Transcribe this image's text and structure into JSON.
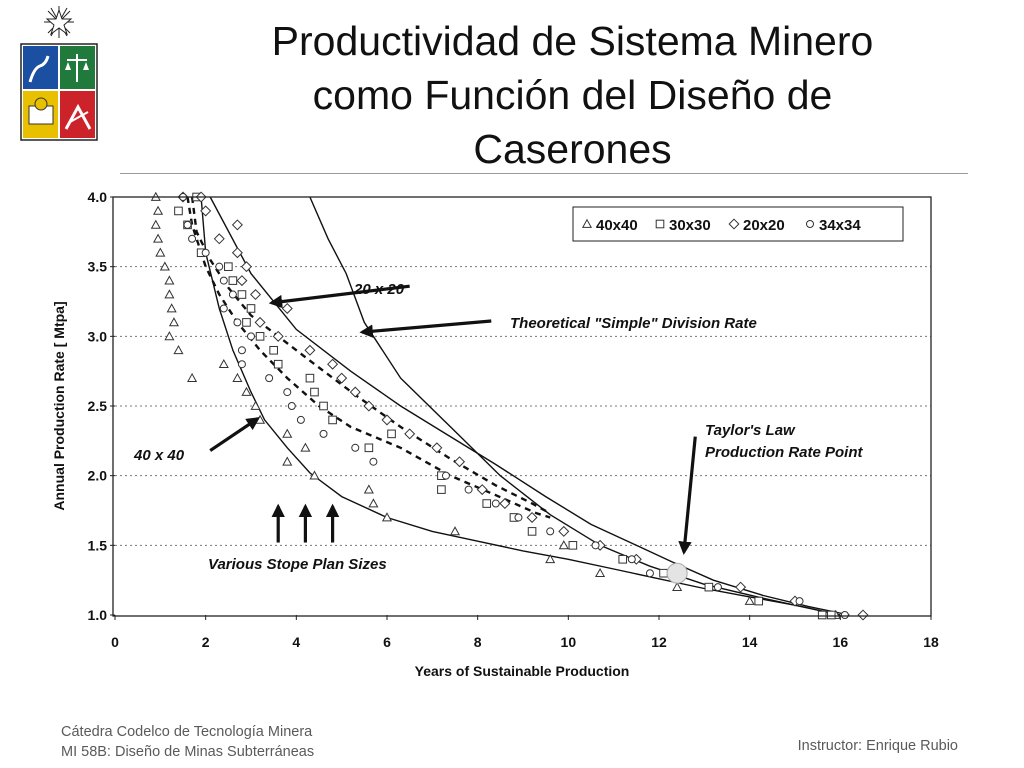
{
  "slide": {
    "title_lines": [
      "Productividad de Sistema Minero",
      "como Función del Diseño de",
      "Caserones"
    ],
    "footer": {
      "left_line1": "Cátedra Codelco de Tecnología Minera",
      "left_line2": "MI 58B: Diseño de Minas Subterráneas",
      "right": "Instructor: Enrique Rubio"
    },
    "colors": {
      "logo_blue": "#1b4fa1",
      "logo_red": "#cc2229",
      "logo_green": "#1f7a3b",
      "logo_yellow": "#e8c000"
    }
  },
  "chart_data": {
    "type": "scatter",
    "xlabel": "Years of Sustainable Production",
    "ylabel": "Annual Production Rate [ Mtpa]",
    "xlim": [
      0,
      18
    ],
    "ylim": [
      1.0,
      4.0
    ],
    "x_ticks": [
      "0",
      "2",
      "4",
      "6",
      "8",
      "10",
      "12",
      "14",
      "16",
      "18"
    ],
    "y_ticks": [
      "1.0",
      "1.5",
      "2.0",
      "2.5",
      "3.0",
      "3.5",
      "4.0"
    ],
    "grid": "horizontal dotted",
    "legend_position": "top-right",
    "series": [
      {
        "name": "40x40",
        "marker": "triangle",
        "points": [
          [
            0.9,
            4.0
          ],
          [
            0.95,
            3.9
          ],
          [
            0.9,
            3.8
          ],
          [
            0.95,
            3.7
          ],
          [
            1.0,
            3.6
          ],
          [
            1.1,
            3.5
          ],
          [
            1.2,
            3.4
          ],
          [
            1.2,
            3.3
          ],
          [
            1.25,
            3.2
          ],
          [
            1.3,
            3.1
          ],
          [
            1.2,
            3.0
          ],
          [
            1.4,
            2.9
          ],
          [
            1.7,
            2.7
          ],
          [
            2.4,
            2.8
          ],
          [
            2.7,
            2.7
          ],
          [
            2.9,
            2.6
          ],
          [
            3.1,
            2.5
          ],
          [
            3.2,
            2.4
          ],
          [
            3.8,
            2.3
          ],
          [
            4.2,
            2.2
          ],
          [
            3.8,
            2.1
          ],
          [
            4.4,
            2.0
          ],
          [
            5.6,
            1.9
          ],
          [
            5.7,
            1.8
          ],
          [
            6.0,
            1.7
          ],
          [
            7.5,
            1.6
          ],
          [
            9.6,
            1.4
          ],
          [
            9.9,
            1.5
          ],
          [
            10.7,
            1.3
          ],
          [
            12.4,
            1.2
          ],
          [
            14.0,
            1.1
          ],
          [
            15.9,
            1.0
          ]
        ]
      },
      {
        "name": "30x30",
        "marker": "square",
        "points": [
          [
            1.4,
            3.9
          ],
          [
            1.6,
            3.8
          ],
          [
            1.8,
            4.0
          ],
          [
            1.9,
            3.6
          ],
          [
            2.5,
            3.5
          ],
          [
            2.6,
            3.4
          ],
          [
            2.8,
            3.3
          ],
          [
            3.0,
            3.2
          ],
          [
            2.9,
            3.1
          ],
          [
            3.2,
            3.0
          ],
          [
            3.5,
            2.9
          ],
          [
            3.6,
            2.8
          ],
          [
            4.3,
            2.7
          ],
          [
            4.4,
            2.6
          ],
          [
            4.6,
            2.5
          ],
          [
            4.8,
            2.4
          ],
          [
            5.6,
            2.2
          ],
          [
            6.1,
            2.3
          ],
          [
            7.2,
            2.0
          ],
          [
            7.2,
            1.9
          ],
          [
            8.2,
            1.8
          ],
          [
            8.8,
            1.7
          ],
          [
            9.2,
            1.6
          ],
          [
            10.1,
            1.5
          ],
          [
            11.2,
            1.4
          ],
          [
            12.1,
            1.3
          ],
          [
            13.1,
            1.2
          ],
          [
            14.2,
            1.1
          ],
          [
            15.6,
            1.0
          ],
          [
            15.8,
            1.0
          ]
        ]
      },
      {
        "name": "20x20",
        "marker": "diamond",
        "points": [
          [
            1.5,
            4.0
          ],
          [
            1.9,
            4.0
          ],
          [
            2.0,
            3.9
          ],
          [
            2.3,
            3.7
          ],
          [
            2.7,
            3.8
          ],
          [
            2.7,
            3.6
          ],
          [
            2.8,
            3.4
          ],
          [
            2.9,
            3.5
          ],
          [
            3.1,
            3.3
          ],
          [
            3.2,
            3.1
          ],
          [
            3.8,
            3.2
          ],
          [
            3.6,
            3.0
          ],
          [
            4.3,
            2.9
          ],
          [
            4.8,
            2.8
          ],
          [
            5.0,
            2.7
          ],
          [
            5.3,
            2.6
          ],
          [
            5.6,
            2.5
          ],
          [
            6.0,
            2.4
          ],
          [
            6.5,
            2.3
          ],
          [
            7.1,
            2.2
          ],
          [
            7.6,
            2.1
          ],
          [
            8.1,
            1.9
          ],
          [
            8.6,
            1.8
          ],
          [
            9.2,
            1.7
          ],
          [
            9.9,
            1.6
          ],
          [
            10.7,
            1.5
          ],
          [
            11.5,
            1.4
          ],
          [
            12.5,
            1.3
          ],
          [
            13.8,
            1.2
          ],
          [
            15.0,
            1.1
          ],
          [
            16.5,
            1.0
          ]
        ]
      },
      {
        "name": "34x34",
        "marker": "circle",
        "points": [
          [
            1.5,
            4.0
          ],
          [
            1.6,
            3.8
          ],
          [
            1.7,
            3.7
          ],
          [
            2.0,
            3.6
          ],
          [
            2.3,
            3.5
          ],
          [
            2.4,
            3.4
          ],
          [
            2.6,
            3.3
          ],
          [
            2.4,
            3.2
          ],
          [
            2.7,
            3.1
          ],
          [
            3.0,
            3.0
          ],
          [
            2.8,
            2.9
          ],
          [
            2.8,
            2.8
          ],
          [
            3.4,
            2.7
          ],
          [
            3.8,
            2.6
          ],
          [
            3.9,
            2.5
          ],
          [
            4.1,
            2.4
          ],
          [
            4.6,
            2.3
          ],
          [
            5.3,
            2.2
          ],
          [
            5.7,
            2.1
          ],
          [
            7.3,
            2.0
          ],
          [
            7.8,
            1.9
          ],
          [
            8.4,
            1.8
          ],
          [
            8.9,
            1.7
          ],
          [
            9.6,
            1.6
          ],
          [
            10.6,
            1.5
          ],
          [
            11.4,
            1.4
          ],
          [
            11.8,
            1.3
          ],
          [
            13.3,
            1.2
          ],
          [
            15.1,
            1.1
          ],
          [
            16.1,
            1.0
          ]
        ]
      }
    ],
    "curves": [
      {
        "name": "theoretical",
        "style": "solid",
        "points": [
          [
            2.1,
            4.0
          ],
          [
            3.0,
            3.45
          ],
          [
            4.0,
            3.05
          ],
          [
            5.2,
            2.75
          ],
          [
            6.3,
            2.5
          ],
          [
            7.3,
            2.3
          ],
          [
            8.4,
            2.08
          ],
          [
            9.5,
            1.85
          ],
          [
            10.5,
            1.65
          ],
          [
            11.5,
            1.5
          ],
          [
            12.3,
            1.38
          ],
          [
            13.2,
            1.25
          ],
          [
            14.3,
            1.14
          ],
          [
            15.3,
            1.06
          ],
          [
            16.2,
            1.0
          ]
        ]
      },
      {
        "name": "simple_division",
        "style": "solid",
        "points": [
          [
            4.3,
            4.0
          ],
          [
            4.7,
            3.7
          ],
          [
            5.1,
            3.45
          ],
          [
            5.5,
            3.1
          ],
          [
            6.3,
            2.7
          ],
          [
            7.4,
            2.35
          ],
          [
            8.5,
            2.0
          ],
          [
            9.6,
            1.72
          ],
          [
            10.7,
            1.5
          ],
          [
            11.8,
            1.35
          ],
          [
            13.0,
            1.22
          ],
          [
            14.3,
            1.12
          ],
          [
            16.0,
            1.0
          ]
        ]
      },
      {
        "name": "lower",
        "style": "solid",
        "points": [
          [
            1.9,
            4.0
          ],
          [
            2.0,
            3.6
          ],
          [
            2.3,
            3.2
          ],
          [
            2.6,
            2.9
          ],
          [
            3.0,
            2.6
          ],
          [
            3.3,
            2.4
          ],
          [
            3.8,
            2.2
          ],
          [
            4.3,
            2.02
          ],
          [
            5.0,
            1.85
          ],
          [
            6.0,
            1.7
          ],
          [
            7.0,
            1.6
          ],
          [
            8.0,
            1.53
          ],
          [
            9.0,
            1.46
          ],
          [
            10.0,
            1.4
          ],
          [
            11.0,
            1.33
          ],
          [
            12.0,
            1.26
          ],
          [
            13.0,
            1.19
          ],
          [
            14.0,
            1.13
          ],
          [
            15.0,
            1.07
          ],
          [
            16.0,
            1.0
          ]
        ]
      },
      {
        "name": "dashed_mid",
        "style": "dashed",
        "points": [
          [
            1.6,
            4.0
          ],
          [
            1.7,
            3.8
          ],
          [
            2.0,
            3.5
          ],
          [
            2.3,
            3.3
          ],
          [
            2.7,
            3.1
          ],
          [
            3.2,
            2.9
          ],
          [
            3.8,
            2.7
          ],
          [
            4.5,
            2.5
          ],
          [
            5.2,
            2.35
          ],
          [
            6.3,
            2.2
          ],
          [
            7.4,
            2.0
          ],
          [
            8.4,
            1.86
          ],
          [
            9.3,
            1.73
          ],
          [
            9.6,
            1.7
          ]
        ]
      },
      {
        "name": "dashed_upper",
        "style": "dashed",
        "points": [
          [
            1.7,
            4.0
          ],
          [
            1.8,
            3.75
          ],
          [
            2.1,
            3.55
          ],
          [
            2.5,
            3.35
          ],
          [
            3.0,
            3.15
          ],
          [
            3.6,
            3.0
          ],
          [
            4.4,
            2.8
          ],
          [
            5.3,
            2.58
          ],
          [
            6.3,
            2.35
          ],
          [
            7.4,
            2.12
          ],
          [
            8.4,
            1.93
          ],
          [
            9.2,
            1.8
          ],
          [
            9.6,
            1.73
          ]
        ]
      }
    ],
    "taylor_point": [
      12.4,
      1.3
    ],
    "annotations": {
      "label_20x20": "20 x 20",
      "label_theoretical": "Theoretical \"Simple\" Division Rate",
      "label_taylor_line1": "Taylor's Law",
      "label_taylor_line2": "Production Rate Point",
      "label_40x40": "40 x 40",
      "label_stope": "Various Stope Plan Sizes"
    },
    "annotation_arrows": [
      {
        "name": "arrow-20x20",
        "from": [
          6.5,
          3.36
        ],
        "to": [
          3.45,
          3.24
        ]
      },
      {
        "name": "arrow-theoretical",
        "from": [
          8.3,
          3.11
        ],
        "to": [
          5.45,
          3.03
        ]
      },
      {
        "name": "arrow-40x40",
        "from": [
          2.1,
          2.18
        ],
        "to": [
          3.15,
          2.41
        ]
      },
      {
        "name": "arrow-taylor",
        "from": [
          12.8,
          2.28
        ],
        "to": [
          12.55,
          1.45
        ]
      },
      {
        "name": "arrow-stope-1",
        "from": [
          3.6,
          1.52
        ],
        "to": [
          3.6,
          1.78
        ]
      },
      {
        "name": "arrow-stope-2",
        "from": [
          4.2,
          1.52
        ],
        "to": [
          4.2,
          1.78
        ]
      },
      {
        "name": "arrow-stope-3",
        "from": [
          4.8,
          1.52
        ],
        "to": [
          4.8,
          1.78
        ]
      }
    ]
  }
}
